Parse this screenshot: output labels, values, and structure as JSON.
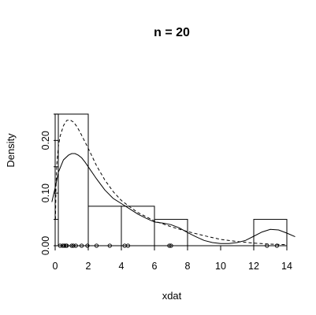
{
  "chart_data": {
    "type": "bar",
    "title": "n = 20",
    "xlabel": "xdat",
    "ylabel": "Density",
    "xlim": [
      0,
      14
    ],
    "ylim": [
      0,
      0.25
    ],
    "x_ticks": [
      0,
      2,
      4,
      6,
      8,
      10,
      12,
      14
    ],
    "x_tick_labels": [
      "0",
      "2",
      "4",
      "6",
      "8",
      "10",
      "12",
      "14"
    ],
    "y_ticks": [
      0.0,
      0.1,
      0.2
    ],
    "y_tick_labels": [
      "0.00",
      "0.10",
      "0.20"
    ],
    "histogram": {
      "bin_edges": [
        0,
        2,
        4,
        6,
        8,
        10,
        12,
        14
      ],
      "densities": [
        0.25,
        0.075,
        0.075,
        0.05,
        0,
        0,
        0.05
      ]
    },
    "series": [
      {
        "style": "solid",
        "x": [
          -0.2,
          0,
          0.2,
          0.5,
          0.8,
          1.0,
          1.2,
          1.4,
          1.6,
          1.8,
          2.0,
          2.5,
          3.0,
          3.5,
          4.0,
          4.5,
          5.0,
          5.5,
          6.0,
          6.5,
          7.0,
          7.5,
          8.0,
          8.5,
          9.0,
          9.5,
          10.0,
          10.5,
          11.0,
          11.5,
          12.0,
          12.5,
          13.0,
          13.5,
          14.0,
          14.5
        ],
        "y": [
          0.083,
          0.11,
          0.14,
          0.163,
          0.172,
          0.175,
          0.175,
          0.172,
          0.167,
          0.159,
          0.15,
          0.127,
          0.106,
          0.09,
          0.08,
          0.07,
          0.06,
          0.052,
          0.045,
          0.043,
          0.04,
          0.034,
          0.025,
          0.017,
          0.01,
          0.006,
          0.004,
          0.004,
          0.006,
          0.01,
          0.018,
          0.026,
          0.031,
          0.03,
          0.024,
          0.017
        ]
      },
      {
        "style": "dashed",
        "x": [
          0.02,
          0.05,
          0.1,
          0.2,
          0.3,
          0.5,
          0.7,
          0.9,
          1.1,
          1.3,
          1.5,
          2.0,
          2.5,
          3.0,
          3.5,
          4.0,
          4.5,
          5.0,
          6.0,
          7.0,
          8.0,
          9.0,
          10.0,
          11.0,
          12.0,
          13.0,
          14.0
        ],
        "y": [
          0.05,
          0.11,
          0.155,
          0.19,
          0.208,
          0.228,
          0.238,
          0.239,
          0.235,
          0.227,
          0.216,
          0.185,
          0.152,
          0.125,
          0.103,
          0.086,
          0.074,
          0.063,
          0.047,
          0.036,
          0.027,
          0.019,
          0.012,
          0.008,
          0.005,
          0.003,
          0.002
        ]
      }
    ],
    "rug": [
      0.3,
      0.45,
      0.55,
      0.65,
      0.7,
      1.0,
      1.1,
      1.25,
      1.6,
      1.95,
      2.5,
      3.3,
      4.2,
      4.4,
      6.9,
      7.0,
      12.8,
      13.4
    ],
    "grid": false,
    "legend": "none"
  }
}
